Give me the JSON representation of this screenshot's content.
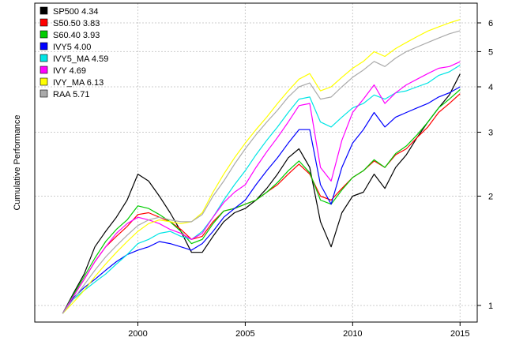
{
  "chart_data": {
    "type": "line",
    "title": "",
    "xlabel": "",
    "ylabel": "Cumulative Performance",
    "y_scale": "log",
    "xlim": [
      1995.2,
      2015.8
    ],
    "ylim": [
      0.9,
      6.8
    ],
    "x_ticks": [
      2000,
      2005,
      2010,
      2015
    ],
    "y_ticks": [
      1,
      2,
      3,
      4,
      5,
      6
    ],
    "grid": true,
    "legend_position": "top-left",
    "x": [
      1996.5,
      1997,
      1997.5,
      1998,
      1998.5,
      1999,
      1999.5,
      2000,
      2000.5,
      2001,
      2001.5,
      2002,
      2002.5,
      2003,
      2003.5,
      2004,
      2004.5,
      2005,
      2005.5,
      2006,
      2006.5,
      2007,
      2007.5,
      2008,
      2008.5,
      2009,
      2009.5,
      2010,
      2010.5,
      2011,
      2011.5,
      2012,
      2012.5,
      2013,
      2013.5,
      2014,
      2014.5,
      2015
    ],
    "series": [
      {
        "name": "SP500 4.34",
        "label": "SP500 4.34",
        "color": "#000000",
        "values": [
          0.95,
          1.08,
          1.22,
          1.45,
          1.6,
          1.75,
          1.95,
          2.3,
          2.2,
          2.0,
          1.8,
          1.6,
          1.4,
          1.4,
          1.55,
          1.7,
          1.8,
          1.85,
          1.95,
          2.1,
          2.3,
          2.55,
          2.7,
          2.4,
          1.7,
          1.45,
          1.8,
          2.0,
          2.05,
          2.3,
          2.1,
          2.4,
          2.6,
          2.9,
          3.2,
          3.5,
          3.8,
          4.34
        ]
      },
      {
        "name": "S50.50 3.83",
        "label": "S50.50 3.83",
        "color": "#ff0000",
        "values": [
          0.95,
          1.06,
          1.18,
          1.32,
          1.45,
          1.55,
          1.65,
          1.78,
          1.8,
          1.75,
          1.7,
          1.62,
          1.52,
          1.55,
          1.7,
          1.82,
          1.85,
          1.9,
          1.95,
          2.05,
          2.15,
          2.3,
          2.45,
          2.3,
          2.0,
          1.95,
          2.1,
          2.25,
          2.35,
          2.5,
          2.4,
          2.6,
          2.7,
          2.9,
          3.1,
          3.4,
          3.6,
          3.83
        ]
      },
      {
        "name": "S60.40 3.93",
        "label": "S60.40 3.93",
        "color": "#00cc00",
        "values": [
          0.95,
          1.07,
          1.2,
          1.35,
          1.5,
          1.62,
          1.72,
          1.88,
          1.85,
          1.78,
          1.7,
          1.6,
          1.48,
          1.52,
          1.68,
          1.82,
          1.85,
          1.9,
          1.95,
          2.05,
          2.18,
          2.35,
          2.5,
          2.32,
          1.95,
          1.9,
          2.08,
          2.25,
          2.35,
          2.52,
          2.4,
          2.62,
          2.75,
          2.95,
          3.2,
          3.5,
          3.7,
          3.93
        ]
      },
      {
        "name": "IVY5 4.00",
        "label": "IVY5 4.00",
        "color": "#0000ff",
        "values": [
          0.95,
          1.05,
          1.12,
          1.18,
          1.25,
          1.32,
          1.38,
          1.42,
          1.45,
          1.5,
          1.48,
          1.45,
          1.42,
          1.48,
          1.6,
          1.75,
          1.85,
          1.95,
          2.15,
          2.35,
          2.55,
          2.8,
          3.05,
          3.05,
          2.15,
          1.9,
          2.4,
          2.8,
          3.05,
          3.4,
          3.1,
          3.3,
          3.4,
          3.5,
          3.6,
          3.75,
          3.85,
          4.0
        ]
      },
      {
        "name": "IVY5_MA 4.59",
        "label": "IVY5_MA 4.59",
        "color": "#00e5e5",
        "values": [
          0.95,
          1.04,
          1.1,
          1.16,
          1.22,
          1.3,
          1.38,
          1.48,
          1.52,
          1.58,
          1.6,
          1.55,
          1.52,
          1.6,
          1.75,
          1.95,
          2.15,
          2.35,
          2.6,
          2.85,
          3.1,
          3.4,
          3.7,
          3.75,
          3.2,
          3.1,
          3.3,
          3.5,
          3.6,
          3.8,
          3.7,
          3.85,
          3.9,
          4.0,
          4.1,
          4.3,
          4.4,
          4.59
        ]
      },
      {
        "name": "IVY 4.69",
        "label": "IVY 4.69",
        "color": "#ff00ff",
        "values": [
          0.95,
          1.06,
          1.18,
          1.32,
          1.45,
          1.58,
          1.68,
          1.75,
          1.72,
          1.68,
          1.62,
          1.58,
          1.52,
          1.58,
          1.75,
          1.92,
          2.05,
          2.15,
          2.4,
          2.65,
          2.9,
          3.2,
          3.55,
          3.6,
          2.4,
          2.2,
          2.85,
          3.4,
          3.7,
          4.05,
          3.6,
          3.85,
          4.05,
          4.2,
          4.35,
          4.5,
          4.55,
          4.69
        ]
      },
      {
        "name": "IVY_MA 6.13",
        "label": "IVY_MA 6.13",
        "color": "#ffff00",
        "values": [
          0.95,
          1.02,
          1.1,
          1.2,
          1.3,
          1.4,
          1.5,
          1.6,
          1.68,
          1.72,
          1.7,
          1.68,
          1.7,
          1.8,
          2.05,
          2.3,
          2.55,
          2.8,
          3.05,
          3.3,
          3.6,
          3.9,
          4.2,
          4.35,
          3.9,
          4.0,
          4.25,
          4.5,
          4.7,
          5.0,
          4.85,
          5.1,
          5.3,
          5.5,
          5.7,
          5.85,
          6.0,
          6.13
        ]
      },
      {
        "name": "RAA 5.71",
        "label": "RAA 5.71",
        "color": "#aaaaaa",
        "values": [
          0.95,
          1.04,
          1.14,
          1.25,
          1.36,
          1.46,
          1.56,
          1.66,
          1.72,
          1.75,
          1.72,
          1.7,
          1.7,
          1.78,
          2.0,
          2.2,
          2.45,
          2.7,
          2.95,
          3.2,
          3.45,
          3.75,
          4.0,
          4.1,
          3.7,
          3.75,
          4.0,
          4.25,
          4.45,
          4.7,
          4.55,
          4.8,
          5.0,
          5.15,
          5.3,
          5.45,
          5.6,
          5.71
        ]
      }
    ]
  }
}
